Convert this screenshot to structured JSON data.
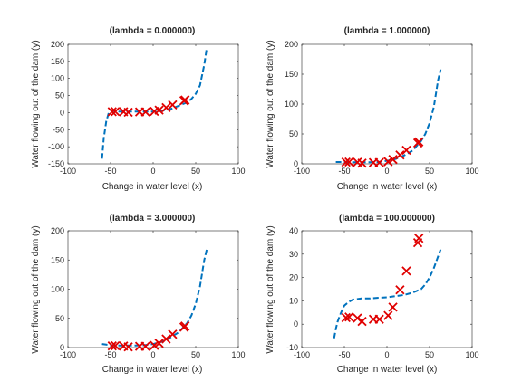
{
  "chart_data": [
    {
      "type": "line",
      "title": "(lambda = 0.000000)",
      "xlabel": "Change in water level (x)",
      "ylabel": "Water flowing out of the dam (y)",
      "xlim": [
        -100,
        100
      ],
      "ylim": [
        -150,
        200
      ],
      "xticks": [
        -100,
        -50,
        0,
        50,
        100
      ],
      "yticks": [
        -150,
        -100,
        -50,
        0,
        50,
        100,
        150,
        200
      ],
      "fit_x": [
        -60,
        -58,
        -55,
        -52,
        -50,
        -45,
        -40,
        -30,
        -20,
        -10,
        0,
        10,
        20,
        30,
        35,
        40,
        45,
        50,
        55,
        60,
        63
      ],
      "fit_y": [
        -135,
        -75,
        -25,
        0,
        5,
        5,
        3,
        3,
        3,
        3,
        3,
        5,
        10,
        20,
        25,
        30,
        40,
        55,
        80,
        140,
        190
      ],
      "points": [
        [
          -15.9,
          2.1
        ],
        [
          -29.2,
          1.2
        ],
        [
          36.2,
          34.9
        ],
        [
          37.5,
          36.8
        ],
        [
          -48.1,
          2.8
        ],
        [
          -8.9,
          2.1
        ],
        [
          15.3,
          14.7
        ],
        [
          -34.7,
          2.6
        ],
        [
          1.4,
          3.7
        ],
        [
          -44.4,
          3.1
        ],
        [
          7.0,
          7.3
        ],
        [
          22.8,
          22.8
        ]
      ],
      "grid": false
    },
    {
      "type": "line",
      "title": "(lambda = 1.000000)",
      "xlabel": "Change in water level (x)",
      "ylabel": "Water flowing out of the dam (y)",
      "xlim": [
        -100,
        100
      ],
      "ylim": [
        0,
        200
      ],
      "xticks": [
        -100,
        -50,
        0,
        50,
        100
      ],
      "yticks": [
        0,
        50,
        100,
        150,
        200
      ],
      "fit_x": [
        -60,
        -55,
        -50,
        -45,
        -40,
        -30,
        -20,
        -10,
        0,
        10,
        20,
        30,
        40,
        45,
        50,
        55,
        60,
        63
      ],
      "fit_y": [
        3,
        3,
        3,
        3,
        2.5,
        2.5,
        2.5,
        3,
        5,
        8,
        14,
        22,
        38,
        50,
        68,
        95,
        140,
        158
      ],
      "points": [
        [
          -15.9,
          2.1
        ],
        [
          -29.2,
          1.2
        ],
        [
          36.2,
          34.9
        ],
        [
          37.5,
          36.8
        ],
        [
          -48.1,
          2.8
        ],
        [
          -8.9,
          2.1
        ],
        [
          15.3,
          14.7
        ],
        [
          -34.7,
          2.6
        ],
        [
          1.4,
          3.7
        ],
        [
          -44.4,
          3.1
        ],
        [
          7.0,
          7.3
        ],
        [
          22.8,
          22.8
        ]
      ],
      "grid": false
    },
    {
      "type": "line",
      "title": "(lambda = 3.000000)",
      "xlabel": "Change in water level (x)",
      "ylabel": "Water flowing out of the dam (y)",
      "xlim": [
        -100,
        100
      ],
      "ylim": [
        0,
        200
      ],
      "xticks": [
        -100,
        -50,
        0,
        50,
        100
      ],
      "yticks": [
        0,
        50,
        100,
        150,
        200
      ],
      "fit_x": [
        -60,
        -55,
        -50,
        -45,
        -40,
        -30,
        -20,
        -10,
        0,
        10,
        20,
        30,
        40,
        45,
        50,
        55,
        60,
        63
      ],
      "fit_y": [
        6,
        5,
        4,
        4,
        3.5,
        3.5,
        3.5,
        4,
        6,
        10,
        17,
        26,
        42,
        55,
        75,
        105,
        150,
        168
      ],
      "points": [
        [
          -15.9,
          2.1
        ],
        [
          -29.2,
          1.2
        ],
        [
          36.2,
          34.9
        ],
        [
          37.5,
          36.8
        ],
        [
          -48.1,
          2.8
        ],
        [
          -8.9,
          2.1
        ],
        [
          15.3,
          14.7
        ],
        [
          -34.7,
          2.6
        ],
        [
          1.4,
          3.7
        ],
        [
          -44.4,
          3.1
        ],
        [
          7.0,
          7.3
        ],
        [
          22.8,
          22.8
        ]
      ],
      "grid": false
    },
    {
      "type": "line",
      "title": "(lambda = 100.000000)",
      "xlabel": "Change in water level (x)",
      "ylabel": "Water flowing out of the dam (y)",
      "xlim": [
        -100,
        100
      ],
      "ylim": [
        -10,
        40
      ],
      "xticks": [
        -100,
        -50,
        0,
        50,
        100
      ],
      "yticks": [
        -10,
        0,
        10,
        20,
        30,
        40
      ],
      "fit_x": [
        -62,
        -60,
        -58,
        -55,
        -52,
        -50,
        -45,
        -40,
        -30,
        -20,
        -10,
        0,
        10,
        20,
        30,
        40,
        45,
        50,
        55,
        60,
        63
      ],
      "fit_y": [
        -6,
        -2,
        1,
        4,
        6.5,
        8,
        9.5,
        10.5,
        11,
        11,
        11.3,
        11.5,
        12,
        12.5,
        13.5,
        15,
        17,
        20,
        24,
        29,
        32
      ],
      "points": [
        [
          -15.9,
          2.1
        ],
        [
          -29.2,
          1.2
        ],
        [
          36.2,
          34.9
        ],
        [
          37.5,
          36.8
        ],
        [
          -48.1,
          2.8
        ],
        [
          -8.9,
          2.1
        ],
        [
          15.3,
          14.7
        ],
        [
          -34.7,
          2.6
        ],
        [
          1.4,
          3.7
        ],
        [
          -44.4,
          3.1
        ],
        [
          7.0,
          7.3
        ],
        [
          22.8,
          22.8
        ]
      ],
      "grid": false
    }
  ],
  "colors": {
    "fit_line": "#0072BD",
    "markers": "#e00000",
    "axes": "#262626"
  }
}
